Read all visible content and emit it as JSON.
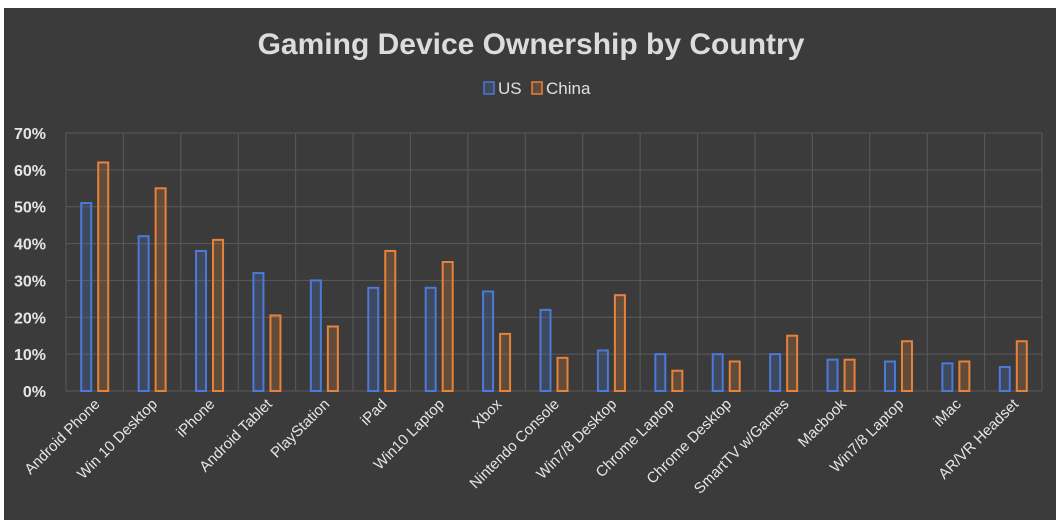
{
  "chart_data": {
    "type": "bar",
    "title": "Gaming Device Ownership by Country",
    "categories": [
      "Android Phone",
      "Win 10 Desktop",
      "iPhone",
      "Android Tablet",
      "PlayStation",
      "iPad",
      "Win10 Laptop",
      "Xbox",
      "Nintendo Console",
      "Win7/8 Desktop",
      "Chrome Laptop",
      "Chrome Desktop",
      "SmartTV w/Games",
      "Macbook",
      "Win7/8 Laptop",
      "iMac",
      "AR/VR Headset"
    ],
    "series": [
      {
        "name": "US",
        "color": "#4d79d8",
        "values": [
          51,
          42,
          38,
          32,
          30,
          28,
          28,
          27,
          22,
          11,
          10,
          10,
          10,
          8.5,
          8,
          7.5,
          6.5
        ]
      },
      {
        "name": "China",
        "color": "#e8823a",
        "values": [
          62,
          55,
          41,
          20.5,
          17.5,
          38,
          35,
          15.5,
          9,
          26,
          5.5,
          8,
          15,
          8.5,
          13.5,
          8,
          13.5
        ]
      }
    ],
    "ylim": [
      0,
      70
    ],
    "yticks": [
      "0%",
      "10%",
      "20%",
      "30%",
      "40%",
      "50%",
      "60%",
      "70%"
    ],
    "legend_position": "top-center",
    "grid": true
  }
}
